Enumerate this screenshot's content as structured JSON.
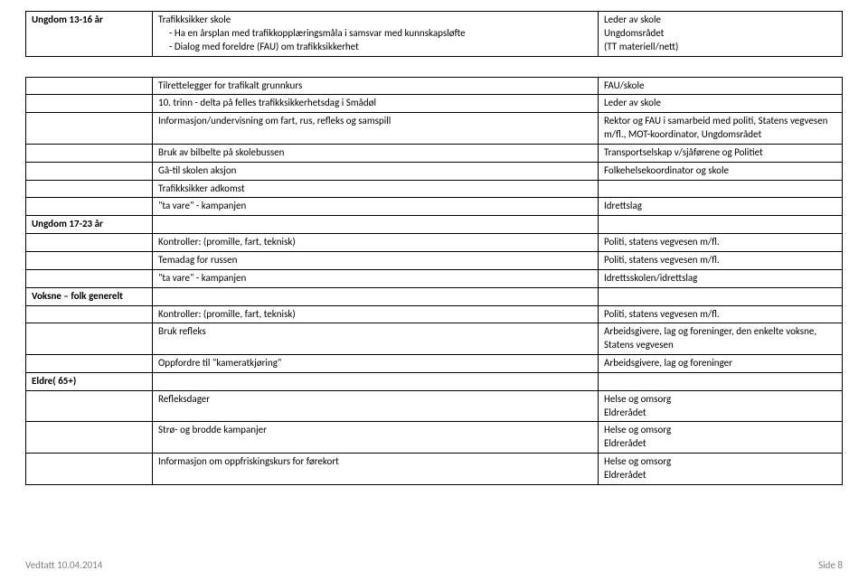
{
  "tables": {
    "top": {
      "col1_header": "Ungdom 13-16 år",
      "col2_lines": [
        "Trafikksikker skole",
        "Ha en årsplan med trafikkopplæringsmåla i samsvar med kunnskapsløfte",
        "Dialog med foreldre (FAU) om trafikksikkerhet"
      ],
      "col3_lines": [
        "Leder av skole",
        "Ungdomsrådet",
        "(TT materiell/nett)"
      ]
    },
    "main": {
      "rows": [
        {
          "c1": "",
          "c2": "Tilrettelegger for trafikalt grunnkurs",
          "c3": "FAU/skole"
        },
        {
          "c1": "",
          "c2": "10. trinn - delta på felles trafikksikkerhetsdag i Smådøl",
          "c3": "Leder av skole"
        },
        {
          "c1": "",
          "c2": "Informasjon/undervisning om fart, rus, refleks og samspill",
          "c3": "Rektor og FAU i samarbeid med politi, Statens vegvesen m/fl., MOT-koordinator, Ungdomsrådet"
        },
        {
          "c1": "",
          "c2": "Bruk av bilbelte på skolebussen",
          "c3": "Transportselskap v/sjåførene og Politiet"
        },
        {
          "c1": "",
          "c2": "Gå-til skolen aksjon",
          "c3": "Folkehelsekoordinator og skole"
        },
        {
          "c1": "",
          "c2": "Trafikksikker adkomst",
          "c3": ""
        },
        {
          "c1": "",
          "c2": "\"ta vare\" - kampanjen",
          "c3": "Idrettslag"
        },
        {
          "section": true,
          "c1": "Ungdom 17-23 år",
          "c2": "",
          "c3": ""
        },
        {
          "c1": "",
          "c2": "Kontroller: (promille, fart, teknisk)",
          "c3": "Politi, statens vegvesen m/fl."
        },
        {
          "c1": "",
          "c2": "Temadag for russen",
          "c3": "Politi, statens vegvesen m/fl."
        },
        {
          "c1": "",
          "c2": "\"ta vare\" - kampanjen",
          "c3": "Idrettsskolen/idrettslag"
        },
        {
          "section": true,
          "c1": "Voksne – folk generelt",
          "c2": "",
          "c3": ""
        },
        {
          "c1": "",
          "c2": "Kontroller: (promille, fart, teknisk)",
          "c3": "Politi, statens vegvesen m/fl."
        },
        {
          "c1": "",
          "c2": "Bruk refleks",
          "c3": "Arbeidsgivere, lag og foreninger, den enkelte voksne, Statens vegvesen"
        },
        {
          "c1": "",
          "c2": "Oppfordre til \"kameratkjøring\"",
          "c3": "Arbeidsgivere, lag og foreninger"
        },
        {
          "section": true,
          "c1": "Eldre( 65+)",
          "c2": "",
          "c3": ""
        },
        {
          "c1": "",
          "c2": "Refleksdager",
          "c3": "Helse og omsorg\nEldrerådet"
        },
        {
          "c1": "",
          "c2": "Strø- og brodde kampanjer",
          "c3": "Helse og omsorg\nEldrerådet"
        },
        {
          "c1": "",
          "c2": "Informasjon om oppfriskingskurs for førekort",
          "c3": "Helse og omsorg\nEldrerådet"
        }
      ]
    }
  },
  "footer": {
    "left": "Vedtatt 10.04.2014",
    "right": "Side 8"
  }
}
